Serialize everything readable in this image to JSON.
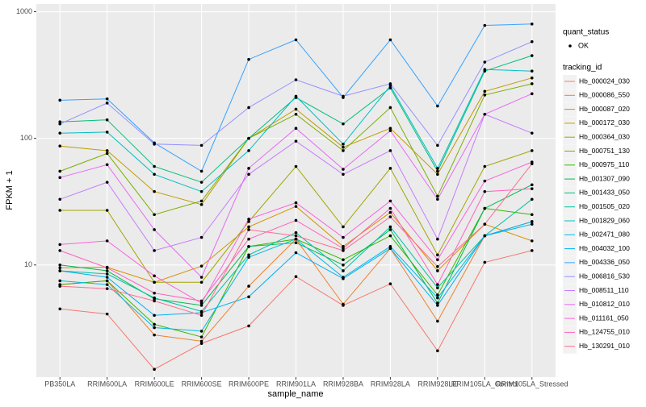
{
  "chart_data": {
    "type": "line",
    "x_label": "sample_name",
    "y_label": "FPKM + 1",
    "log_y": true,
    "grid": true,
    "legend_position": "right",
    "ylim": [
      1.3,
      1150
    ],
    "yticks": [
      10,
      100,
      1000
    ],
    "categories": [
      "PB350LA",
      "RRIM600LA",
      "RRIM600LE",
      "RRIM600SE",
      "RRIM600PE",
      "RRIM901LA",
      "RRIM928BA",
      "RRIM928LA",
      "RRIM928LE",
      "RRIM105LA_Control",
      "RRIM105LA_Stressed"
    ],
    "point_legend_title": "quant_status",
    "point_legend_label": "OK",
    "point_color": "#000000",
    "legend_title": "tracking_id",
    "series": [
      {
        "name": "Hb_000024_030",
        "color": "#F8766D",
        "values": [
          4.5,
          4.1,
          1.5,
          2.4,
          3.3,
          8.1,
          4.8,
          7.1,
          2.1,
          10.5,
          13
        ]
      },
      {
        "name": "Hb_000086_550",
        "color": "#EA8331",
        "values": [
          7,
          7.5,
          2.8,
          2.5,
          6.8,
          16,
          4.9,
          13.5,
          3.6,
          17,
          22
        ]
      },
      {
        "name": "Hb_000087_020",
        "color": "#D89000",
        "values": [
          9.5,
          9.6,
          7.3,
          9.8,
          20,
          29,
          14,
          26,
          9,
          21,
          15.5
        ]
      },
      {
        "name": "Hb_000172_030",
        "color": "#C09B00",
        "values": [
          87,
          80,
          38,
          30,
          100,
          170,
          85,
          120,
          52,
          235,
          300
        ]
      },
      {
        "name": "Hb_000364_030",
        "color": "#A3A500",
        "values": [
          27,
          27,
          7.3,
          7.3,
          22,
          60,
          20,
          58,
          12,
          60,
          80
        ]
      },
      {
        "name": "Hb_000751_130",
        "color": "#7CAE00",
        "values": [
          55,
          76,
          25,
          32,
          100,
          155,
          80,
          175,
          35,
          220,
          270
        ]
      },
      {
        "name": "Hb_000975_110",
        "color": "#39B600",
        "values": [
          7,
          7.5,
          3.4,
          2.7,
          14,
          16,
          11,
          17,
          5.8,
          28,
          25
        ]
      },
      {
        "name": "Hb_001307_090",
        "color": "#00BB4E",
        "values": [
          10,
          9,
          5.4,
          4.8,
          14,
          15,
          10,
          19,
          5,
          28,
          43
        ]
      },
      {
        "name": "Hb_001433_050",
        "color": "#00BF7D",
        "values": [
          135,
          140,
          60,
          45,
          100,
          210,
          130,
          250,
          55,
          340,
          450
        ]
      },
      {
        "name": "Hb_001505_020",
        "color": "#00C1A3",
        "values": [
          9,
          8.5,
          5.5,
          4.3,
          12,
          18,
          9,
          20,
          6.6,
          17,
          33
        ]
      },
      {
        "name": "Hb_001829_060",
        "color": "#00BFC4",
        "values": [
          110,
          112,
          52,
          38,
          80,
          215,
          90,
          260,
          58,
          350,
          340
        ]
      },
      {
        "name": "Hb_002471_080",
        "color": "#00BAE0",
        "values": [
          7.5,
          7,
          3.2,
          3,
          11.5,
          16,
          8,
          14,
          5.5,
          17,
          21
        ]
      },
      {
        "name": "Hb_004032_100",
        "color": "#00B0F6",
        "values": [
          9,
          8,
          4,
          4.2,
          5.6,
          12.5,
          7.8,
          13.5,
          4.8,
          17,
          22
        ]
      },
      {
        "name": "Hb_004336_050",
        "color": "#35A2FF",
        "values": [
          200,
          205,
          92,
          55,
          420,
          600,
          210,
          600,
          180,
          780,
          800
        ]
      },
      {
        "name": "Hb_006816_530",
        "color": "#9590FF",
        "values": [
          130,
          190,
          90,
          88,
          175,
          290,
          215,
          270,
          88,
          400,
          580
        ]
      },
      {
        "name": "Hb_008511_110",
        "color": "#C77CFF",
        "values": [
          33,
          45,
          13,
          16.5,
          52,
          95,
          52,
          80,
          16,
          155,
          110
        ]
      },
      {
        "name": "Hb_010812_010",
        "color": "#E76BF3",
        "values": [
          49,
          62,
          19,
          8,
          58,
          120,
          57,
          115,
          33,
          155,
          225
        ]
      },
      {
        "name": "Hb_011161_050",
        "color": "#FA62DB",
        "values": [
          14.5,
          15.5,
          8.2,
          5,
          23,
          31,
          16.5,
          32,
          11,
          46,
          65
        ]
      },
      {
        "name": "Hb_124755_010",
        "color": "#FF62BC",
        "values": [
          13,
          9.5,
          6,
          5.2,
          16,
          22.5,
          13.5,
          28,
          7,
          38,
          40
        ]
      },
      {
        "name": "Hb_130291_010",
        "color": "#FF6C91",
        "values": [
          6.8,
          6.5,
          5.2,
          4,
          19,
          17,
          13,
          24,
          9.7,
          21,
          63
        ]
      }
    ]
  }
}
